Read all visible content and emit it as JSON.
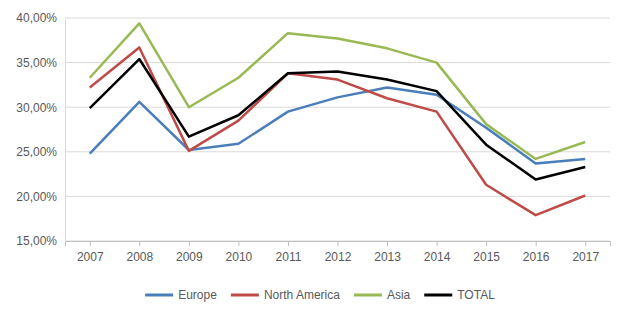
{
  "chart_data": {
    "type": "line",
    "categories": [
      "2007",
      "2008",
      "2009",
      "2010",
      "2011",
      "2012",
      "2013",
      "2014",
      "2015",
      "2016",
      "2017"
    ],
    "series": [
      {
        "name": "Europe",
        "color": "#4a7ebb",
        "values": [
          24.8,
          30.6,
          25.2,
          25.9,
          29.5,
          31.1,
          32.2,
          31.4,
          27.7,
          23.7,
          24.2
        ]
      },
      {
        "name": "North America",
        "color": "#be4b48",
        "values": [
          32.2,
          36.7,
          25.1,
          28.5,
          33.8,
          33.1,
          31.0,
          29.5,
          21.3,
          17.9,
          20.1
        ]
      },
      {
        "name": "Asia",
        "color": "#98b954",
        "values": [
          33.3,
          39.4,
          30.0,
          33.3,
          38.3,
          37.7,
          36.6,
          35.0,
          28.1,
          24.2,
          26.1
        ]
      },
      {
        "name": "TOTAL",
        "color": "#000000",
        "values": [
          29.9,
          35.4,
          26.7,
          29.1,
          33.8,
          34.0,
          33.1,
          31.8,
          25.8,
          21.9,
          23.3
        ]
      }
    ],
    "ylim": [
      15,
      40
    ],
    "yticks": [
      {
        "value": 15,
        "label": "15,00%"
      },
      {
        "value": 20,
        "label": "20,00%"
      },
      {
        "value": 25,
        "label": "25,00%"
      },
      {
        "value": 30,
        "label": "30,00%"
      },
      {
        "value": 35,
        "label": "35,00%"
      },
      {
        "value": 40,
        "label": "40,00%"
      }
    ],
    "grid": true,
    "legend": "bottom"
  }
}
